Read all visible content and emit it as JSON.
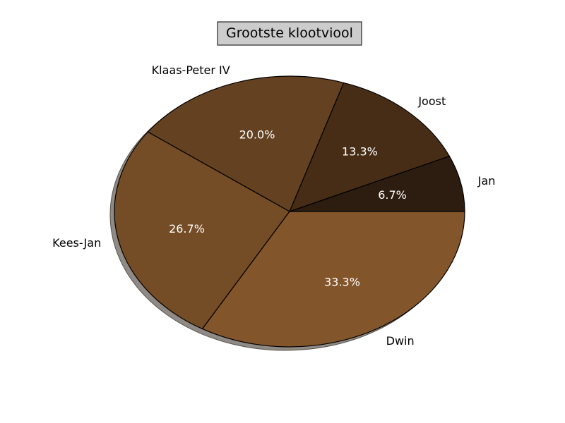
{
  "chart_data": {
    "type": "pie",
    "title": "Grootste klootviool",
    "categories": [
      "Jan",
      "Joost",
      "Klaas-Peter IV",
      "Kees-Jan",
      "Dwin"
    ],
    "values": [
      6.7,
      13.3,
      20.0,
      26.7,
      33.3
    ],
    "percent_labels": [
      "6.7%",
      "13.3%",
      "20.0%",
      "26.7%",
      "33.3%"
    ],
    "colors": [
      "#2d1d10",
      "#472d16",
      "#644221",
      "#744c25",
      "#83552b"
    ],
    "start_angle": 0,
    "direction": "counterclockwise",
    "shadow": true,
    "legend": "none"
  }
}
